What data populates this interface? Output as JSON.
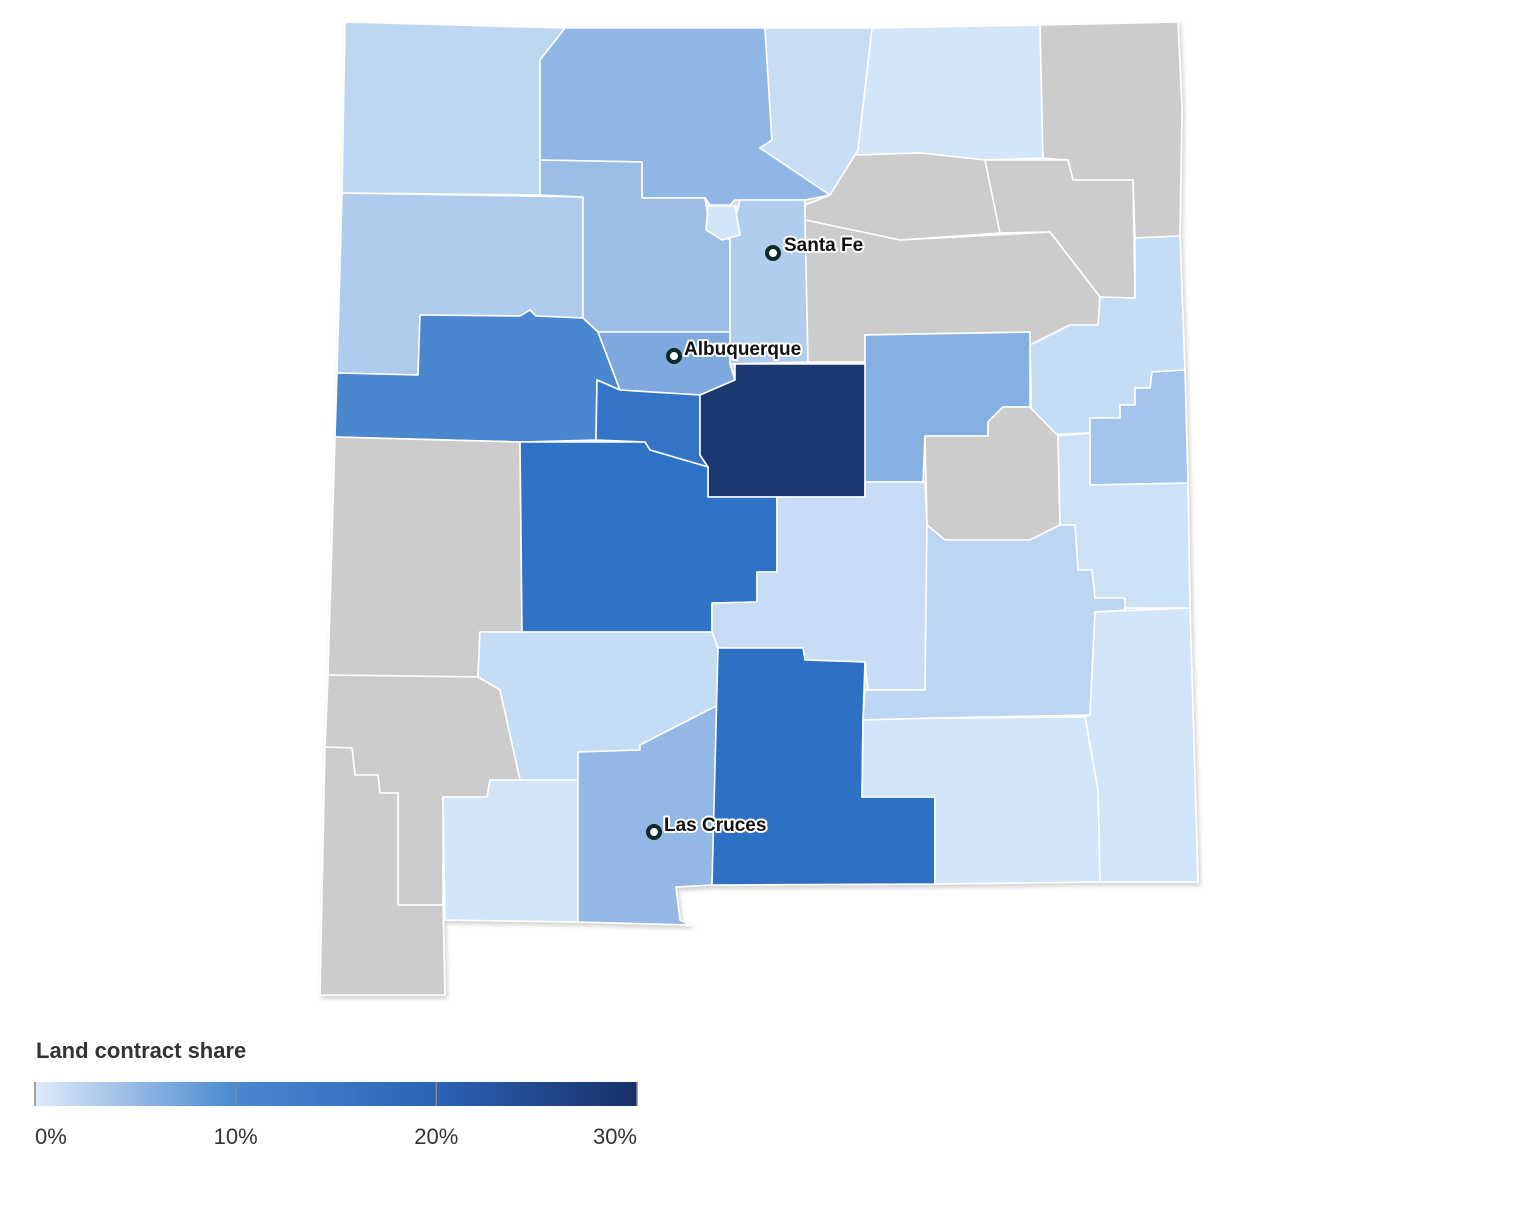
{
  "legend": {
    "title": "Land contract share",
    "xlim": [
      0,
      30
    ],
    "ticks": [
      {
        "value": 0,
        "label": "0%"
      },
      {
        "value": 10,
        "label": "10%"
      },
      {
        "value": 20,
        "label": "20%"
      },
      {
        "value": 30,
        "label": "30%"
      }
    ],
    "colors": [
      "#deebfa",
      "#4a88d0",
      "#2c62b5",
      "#17306a"
    ]
  },
  "cities": [
    {
      "name": "Santa Fe"
    },
    {
      "name": "Albuquerque"
    },
    {
      "name": "Las Cruces"
    }
  ]
}
